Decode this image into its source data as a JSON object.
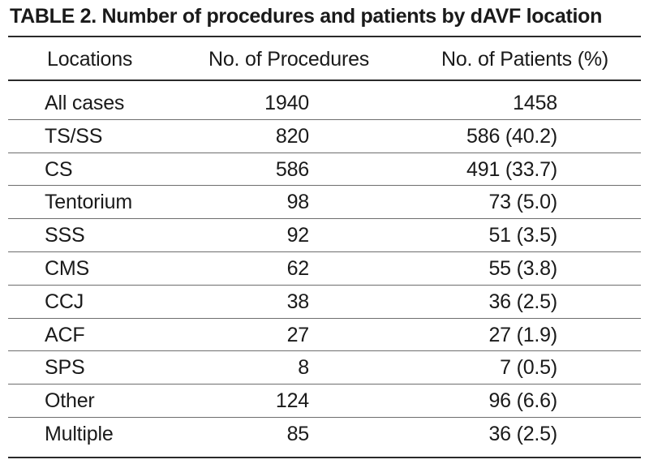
{
  "table": {
    "title": "TABLE 2. Number of procedures and patients by dAVF location",
    "headers": [
      "Locations",
      "No. of Procedures",
      "No. of Patients (%)"
    ],
    "rows": [
      {
        "location": "All cases",
        "procedures": "1940",
        "patients": "1458"
      },
      {
        "location": "TS/SS",
        "procedures": "820",
        "patients": "586 (40.2)"
      },
      {
        "location": "CS",
        "procedures": "586",
        "patients": "491 (33.7)"
      },
      {
        "location": "Tentorium",
        "procedures": "98",
        "patients": "73 (5.0)"
      },
      {
        "location": "SSS",
        "procedures": "92",
        "patients": "51 (3.5)"
      },
      {
        "location": "CMS",
        "procedures": "62",
        "patients": "55 (3.8)"
      },
      {
        "location": "CCJ",
        "procedures": "38",
        "patients": "36 (2.5)"
      },
      {
        "location": "ACF",
        "procedures": "27",
        "patients": "27 (1.9)"
      },
      {
        "location": "SPS",
        "procedures": "8",
        "patients": "7 (0.5)"
      },
      {
        "location": "Other",
        "procedures": "124",
        "patients": "96 (6.6)"
      },
      {
        "location": "Multiple",
        "procedures": "85",
        "patients": "36 (2.5)"
      }
    ]
  }
}
